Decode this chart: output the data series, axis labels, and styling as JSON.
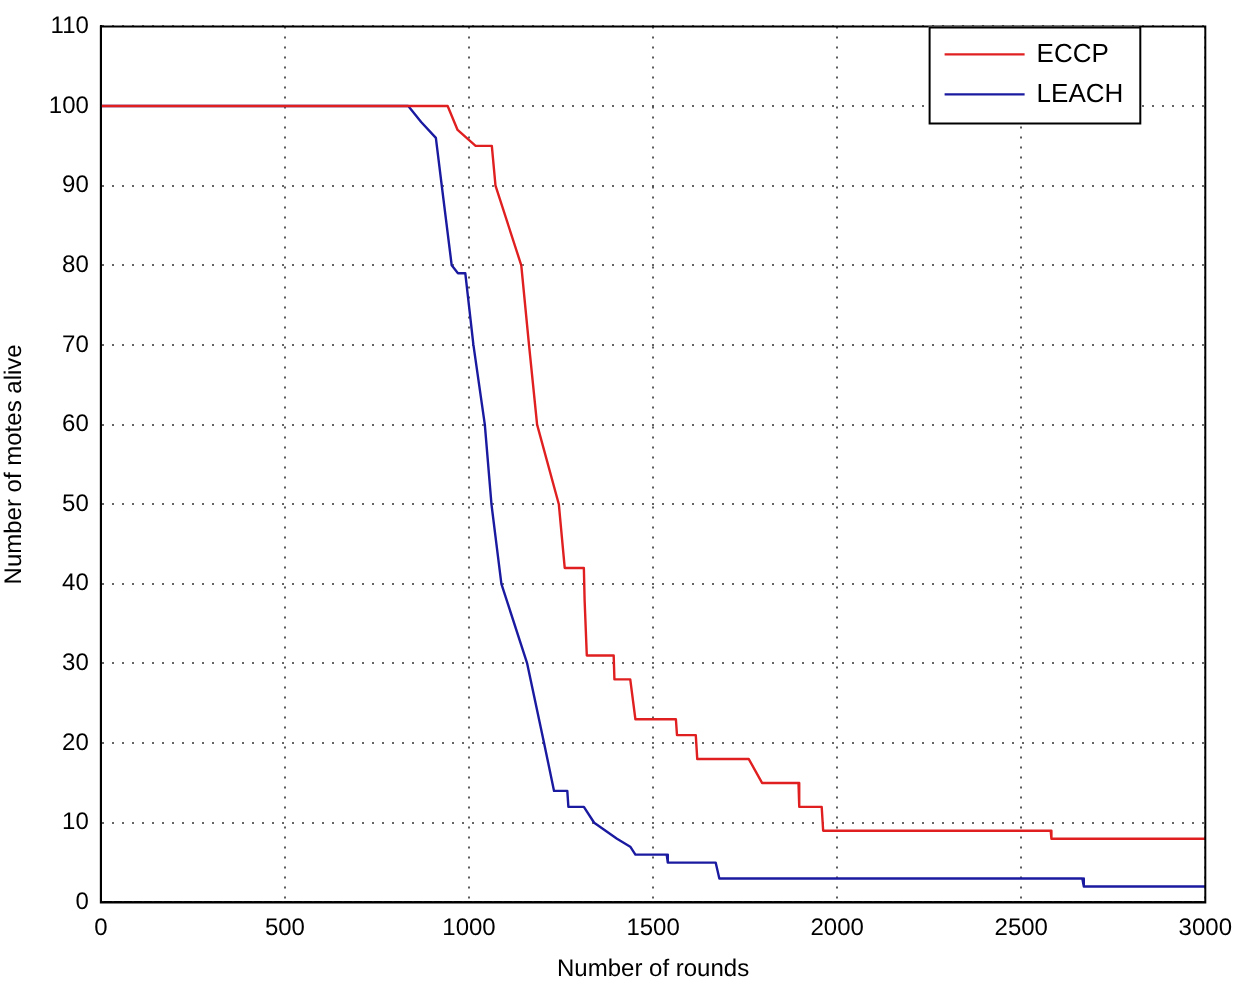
{
  "chart_data": {
    "type": "line",
    "xlabel": "Number of rounds",
    "ylabel": "Number of motes alive",
    "xlim": [
      0,
      3000
    ],
    "xticks": [
      0,
      500,
      1000,
      1500,
      2000,
      2500,
      3000
    ],
    "ylim": [
      0,
      110
    ],
    "yticks": [
      0,
      10,
      20,
      30,
      40,
      50,
      60,
      70,
      80,
      90,
      100,
      110
    ],
    "grid": true,
    "legend": "top right",
    "marker": "none",
    "line_style": "solid",
    "series": [
      {
        "name": "ECCP",
        "color": "#e02020",
        "x": [
          0,
          942,
          969,
          1018,
          1062,
          1072,
          1142,
          1163,
          1185,
          1244,
          1260,
          1312,
          1314,
          1320,
          1393,
          1395,
          1438,
          1452,
          1562,
          1565,
          1616,
          1620,
          1760,
          1796,
          1895,
          1897,
          1958,
          1962,
          2580,
          2582,
          3000
        ],
        "values": [
          100,
          100,
          97,
          95,
          95,
          90,
          80,
          70,
          60,
          50,
          42,
          42,
          38,
          31,
          31,
          28,
          28,
          23,
          23,
          21,
          21,
          18,
          18,
          15,
          15,
          12,
          12,
          9,
          9,
          8,
          8
        ]
      },
      {
        "name": "LEACH",
        "color": "#1a1aa0",
        "x": [
          0,
          835,
          870,
          910,
          926,
          953,
          970,
          990,
          1012,
          1043,
          1061,
          1088,
          1158,
          1204,
          1231,
          1267,
          1270,
          1312,
          1340,
          1402,
          1438,
          1452,
          1537,
          1540,
          1670,
          1680,
          2666,
          2670,
          3000
        ],
        "values": [
          100,
          100,
          98,
          96,
          90,
          80,
          79,
          79,
          70,
          60,
          50,
          40,
          30,
          20,
          14,
          14,
          12,
          12,
          10,
          8,
          7,
          6,
          6,
          5,
          5,
          3,
          3,
          2,
          2
        ]
      }
    ]
  }
}
